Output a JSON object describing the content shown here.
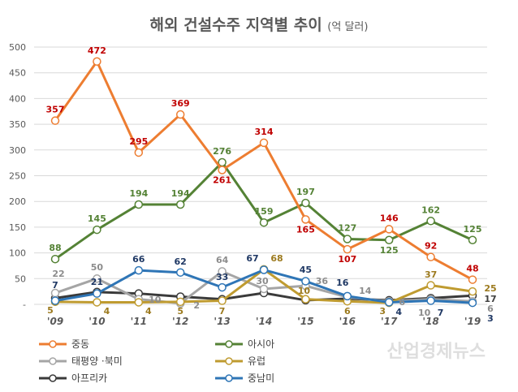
{
  "chart_data": {
    "type": "line",
    "title": "해외 건설수주 지역별 추이",
    "subtitle": "(억 달러)",
    "categories": [
      "'09",
      "'10",
      "'11",
      "'12",
      "'13",
      "'14",
      "'15",
      "'16",
      "'17",
      "'18",
      "'19"
    ],
    "ylim": [
      0,
      500
    ],
    "yticks": [
      "-",
      "50",
      "100",
      "150",
      "200",
      "250",
      "300",
      "350",
      "400",
      "450",
      "500"
    ],
    "grid": true,
    "legend_position": "bottom-left",
    "series": [
      {
        "name": "중동",
        "color": "#ED7D31",
        "label_color": "#C00000",
        "values": [
          357,
          472,
          295,
          369,
          261,
          314,
          165,
          107,
          146,
          92,
          48
        ],
        "labels": [
          357,
          472,
          295,
          369,
          261,
          314,
          165,
          107,
          146,
          92,
          48
        ]
      },
      {
        "name": "아시아",
        "color": "#548235",
        "label_color": "#548235",
        "values": [
          88,
          145,
          194,
          194,
          276,
          159,
          197,
          127,
          125,
          162,
          125
        ],
        "labels": [
          88,
          145,
          194,
          194,
          276,
          159,
          197,
          127,
          125,
          162,
          125
        ]
      },
      {
        "name": "태평양 ·북미",
        "color": "#A5A5A5",
        "label_color": "#8C8C8C",
        "values": [
          22,
          50,
          10,
          2,
          64,
          30,
          36,
          14,
          6,
          10,
          6
        ],
        "labels": [
          22,
          50,
          10,
          2,
          64,
          30,
          36,
          14,
          6,
          10,
          6
        ]
      },
      {
        "name": "유럽",
        "color": "#BF9B30",
        "label_color": "#9C7A1E",
        "values": [
          5,
          4,
          4,
          5,
          7,
          68,
          10,
          6,
          3,
          37,
          25
        ],
        "labels": [
          5,
          4,
          4,
          5,
          7,
          68,
          10,
          6,
          3,
          37,
          25
        ]
      },
      {
        "name": "아프리카",
        "color": "#3A3A3A",
        "label_color": "#404040",
        "values": [
          12,
          24,
          21,
          15,
          10,
          22,
          8,
          11,
          8,
          12,
          17
        ],
        "labels": [
          null,
          null,
          null,
          null,
          null,
          null,
          null,
          null,
          null,
          null,
          17
        ]
      },
      {
        "name": "중남미",
        "color": "#2E75B6",
        "label_color": "#1F3864",
        "values": [
          7,
          21,
          66,
          62,
          33,
          67,
          45,
          16,
          4,
          7,
          3
        ],
        "labels": [
          7,
          21,
          66,
          62,
          33,
          67,
          45,
          16,
          4,
          7,
          3
        ]
      }
    ]
  },
  "watermark": "산업경제뉴스"
}
